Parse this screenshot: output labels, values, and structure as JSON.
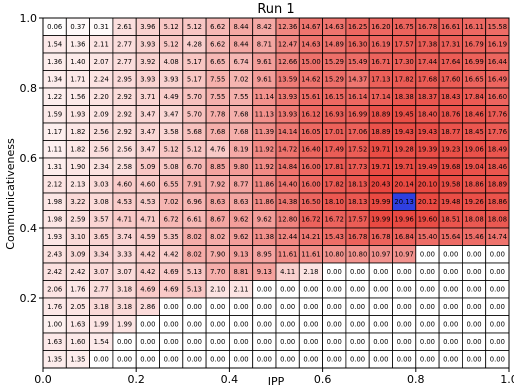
{
  "chart_data": {
    "type": "heatmap",
    "title": "Run 1",
    "xlabel": "IPP",
    "ylabel": "Communicativeness",
    "xlim": [
      0.0,
      1.0
    ],
    "ylim": [
      0.0,
      1.0
    ],
    "xticks": [
      "0.0",
      "0.2",
      "0.4",
      "0.6",
      "0.8",
      "1.0"
    ],
    "yticks": [
      "0.2",
      "0.4",
      "0.6",
      "0.8",
      "1.0"
    ],
    "colorscale": {
      "low": "#ffffff",
      "high": "#e8423a",
      "vmax": 21.0
    },
    "highlight": {
      "row": 10,
      "col": 15,
      "color": "#2f3fe0"
    },
    "grid": [
      [
        0.06,
        0.37,
        0.31,
        2.61,
        3.96,
        5.12,
        5.12,
        6.62,
        8.44,
        8.42,
        12.36,
        14.67,
        14.63,
        16.25,
        16.2,
        16.75,
        16.78,
        16.61,
        16.11,
        15.58
      ],
      [
        1.54,
        1.36,
        2.11,
        2.77,
        3.93,
        5.12,
        4.28,
        6.62,
        8.44,
        8.71,
        12.47,
        14.63,
        14.89,
        16.3,
        16.19,
        17.57,
        17.38,
        17.31,
        16.79,
        16.19
      ],
      [
        1.36,
        1.4,
        2.07,
        2.77,
        3.92,
        4.08,
        5.17,
        6.65,
        6.74,
        9.61,
        12.66,
        15.0,
        15.29,
        15.49,
        16.71,
        17.3,
        17.44,
        17.64,
        16.99,
        16.44
      ],
      [
        1.34,
        1.71,
        2.24,
        2.95,
        3.93,
        3.93,
        5.17,
        7.55,
        7.02,
        9.61,
        13.59,
        14.62,
        15.29,
        14.37,
        17.13,
        17.82,
        17.68,
        17.6,
        16.65,
        16.49
      ],
      [
        1.22,
        1.56,
        2.2,
        2.92,
        3.71,
        4.49,
        5.7,
        7.55,
        7.55,
        11.14,
        13.93,
        15.61,
        16.15,
        16.14,
        17.14,
        18.38,
        18.37,
        18.43,
        17.84,
        16.6
      ],
      [
        1.59,
        1.93,
        2.09,
        2.92,
        3.47,
        3.47,
        5.7,
        7.78,
        7.68,
        11.13,
        13.93,
        16.12,
        16.93,
        16.99,
        18.89,
        19.45,
        18.4,
        18.76,
        18.46,
        17.76
      ],
      [
        1.17,
        1.82,
        2.56,
        2.92,
        3.47,
        3.58,
        5.68,
        7.68,
        7.68,
        11.39,
        14.14,
        16.05,
        17.01,
        17.06,
        18.89,
        19.43,
        19.43,
        18.77,
        18.45,
        17.76
      ],
      [
        1.11,
        1.82,
        2.56,
        2.56,
        3.47,
        5.12,
        5.12,
        4.76,
        8.19,
        11.92,
        14.72,
        16.4,
        17.49,
        17.52,
        19.71,
        19.28,
        19.39,
        19.23,
        19.06,
        18.49
      ],
      [
        1.31,
        1.9,
        2.34,
        2.58,
        5.09,
        5.08,
        6.7,
        8.85,
        9.8,
        11.92,
        14.84,
        16.0,
        17.81,
        17.73,
        19.71,
        19.71,
        19.49,
        19.68,
        19.04,
        18.46
      ],
      [
        2.12,
        2.13,
        3.03,
        4.6,
        4.6,
        6.55,
        7.91,
        7.92,
        8.77,
        11.86,
        14.4,
        16.0,
        17.82,
        18.13,
        20.43,
        20.14,
        20.1,
        19.58,
        18.86,
        18.89
      ],
      [
        1.98,
        3.22,
        3.08,
        4.53,
        4.53,
        7.02,
        6.96,
        8.63,
        8.63,
        11.86,
        14.38,
        16.5,
        18.1,
        18.13,
        19.99,
        20.13,
        20.12,
        19.48,
        19.26,
        18.86
      ],
      [
        1.98,
        2.59,
        3.57,
        4.71,
        4.71,
        6.72,
        6.61,
        8.67,
        9.62,
        9.62,
        12.8,
        16.72,
        16.72,
        17.57,
        19.99,
        19.96,
        19.6,
        18.51,
        18.08,
        18.08
      ],
      [
        1.93,
        3.1,
        3.65,
        3.74,
        4.59,
        5.35,
        8.02,
        8.02,
        9.62,
        11.38,
        12.44,
        14.21,
        15.43,
        16.78,
        16.78,
        16.84,
        15.4,
        15.64,
        15.46,
        14.74
      ],
      [
        2.43,
        3.09,
        3.34,
        3.33,
        4.42,
        4.42,
        8.02,
        7.9,
        9.13,
        8.95,
        11.61,
        11.61,
        10.8,
        10.8,
        10.97,
        10.97,
        0.0,
        0.0,
        0.0,
        0.0
      ],
      [
        2.42,
        2.42,
        3.07,
        3.07,
        4.42,
        4.69,
        5.13,
        7.7,
        8.81,
        9.13,
        4.11,
        2.18,
        0.0,
        0.0,
        0.0,
        0.0,
        0.0,
        0.0,
        0.0,
        0.0
      ],
      [
        2.06,
        1.76,
        2.77,
        3.18,
        4.69,
        4.69,
        5.13,
        2.1,
        2.11,
        0.0,
        0.0,
        0.0,
        0.0,
        0.0,
        0.0,
        0.0,
        0.0,
        0.0,
        0.0,
        0.0
      ],
      [
        1.76,
        2.05,
        3.18,
        3.18,
        2.86,
        0.0,
        0.0,
        0.0,
        0.0,
        0.0,
        0.0,
        0.0,
        0.0,
        0.0,
        0.0,
        0.0,
        0.0,
        0.0,
        0.0,
        0.0
      ],
      [
        1.0,
        1.63,
        1.99,
        1.99,
        0.0,
        0.0,
        0.0,
        0.0,
        0.0,
        0.0,
        0.0,
        0.0,
        0.0,
        0.0,
        0.0,
        0.0,
        0.0,
        0.0,
        0.0,
        0.0
      ],
      [
        1.63,
        1.6,
        1.54,
        0.0,
        0.0,
        0.0,
        0.0,
        0.0,
        0.0,
        0.0,
        0.0,
        0.0,
        0.0,
        0.0,
        0.0,
        0.0,
        0.0,
        0.0,
        0.0,
        0.0
      ],
      [
        1.35,
        1.35,
        0.0,
        0.0,
        0.0,
        0.0,
        0.0,
        0.0,
        0.0,
        0.0,
        0.0,
        0.0,
        0.0,
        0.0,
        0.0,
        0.0,
        0.0,
        0.0,
        0.0,
        0.0
      ]
    ]
  }
}
